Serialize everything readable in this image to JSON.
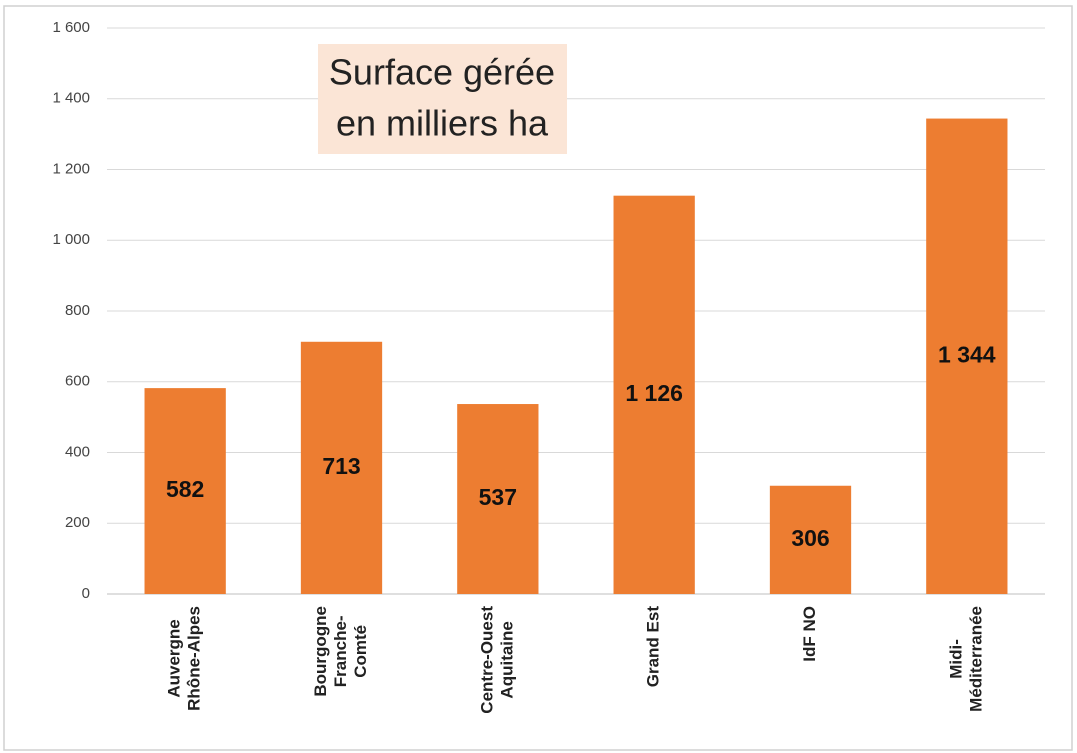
{
  "chart_data": {
    "type": "bar",
    "title": [
      "Surface gérée",
      "en milliers ha"
    ],
    "categories": [
      [
        "Auvergne",
        "Rhône-Alpes"
      ],
      [
        "Bourgogne",
        "Franche-",
        "Comté"
      ],
      [
        "Centre-Ouest",
        "Aquitaine"
      ],
      [
        "Grand Est"
      ],
      [
        "IdF NO"
      ],
      [
        "Midi-",
        "Méditerranée"
      ]
    ],
    "values": [
      582,
      713,
      537,
      1126,
      306,
      1344
    ],
    "value_labels": [
      "582",
      "713",
      "537",
      "1 126",
      "306",
      "1 344"
    ],
    "color": "#ed7d31",
    "ylim": [
      0,
      1600
    ],
    "yticks": [
      0,
      200,
      400,
      600,
      800,
      {
        "value": 1000,
        "label": "1 000"
      },
      {
        "value": 1200,
        "label": "1 200"
      },
      {
        "value": 1400,
        "label": "1 400"
      },
      {
        "value": 1600,
        "label": "1 600"
      }
    ],
    "grid": true
  }
}
